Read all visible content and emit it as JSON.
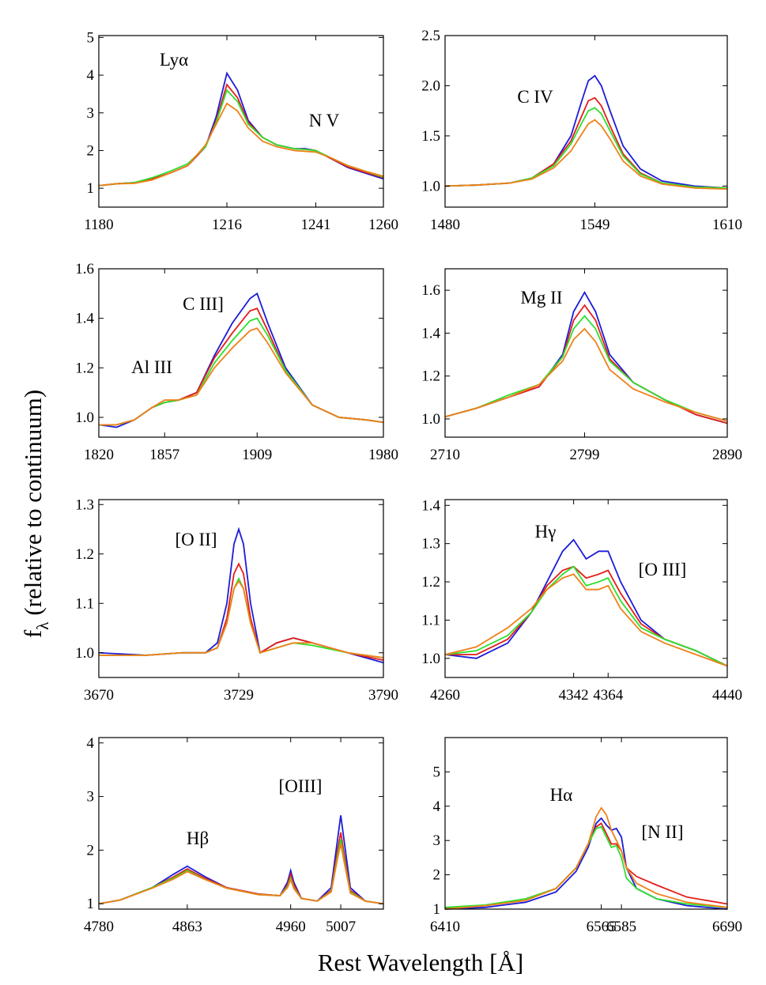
{
  "figure": {
    "ylabel_main": "f",
    "ylabel_sub": "λ",
    "ylabel_rest": "(relative to continuum)",
    "xlabel": "Rest Wavelength [Å]"
  },
  "chart_data": [
    {
      "type": "line",
      "annotations": [
        "Lyα",
        "N V"
      ],
      "xlim": [
        1180,
        1260
      ],
      "xticks": [
        1180,
        1216,
        1241,
        1260
      ],
      "ylim": [
        0.5,
        5.05
      ],
      "yticks": [
        1,
        2,
        3,
        4,
        5
      ],
      "x": [
        1180,
        1185,
        1190,
        1195,
        1200,
        1205,
        1210,
        1213,
        1216,
        1219,
        1222,
        1226,
        1230,
        1235,
        1238,
        1241,
        1245,
        1250,
        1255,
        1260
      ],
      "series": [
        {
          "color": "#1c1cd8",
          "values": [
            1.07,
            1.12,
            1.15,
            1.25,
            1.4,
            1.6,
            2.1,
            2.9,
            4.05,
            3.6,
            2.8,
            2.35,
            2.15,
            2.05,
            2.05,
            2.0,
            1.8,
            1.55,
            1.4,
            1.25
          ]
        },
        {
          "color": "#e41e1a",
          "values": [
            1.07,
            1.12,
            1.15,
            1.25,
            1.4,
            1.6,
            2.1,
            2.8,
            3.75,
            3.4,
            2.75,
            2.35,
            2.15,
            2.05,
            2.03,
            2.0,
            1.8,
            1.57,
            1.42,
            1.28
          ]
        },
        {
          "color": "#2ee02e",
          "values": [
            1.07,
            1.12,
            1.15,
            1.28,
            1.45,
            1.65,
            2.1,
            2.75,
            3.6,
            3.3,
            2.7,
            2.35,
            2.15,
            2.05,
            2.03,
            2.0,
            1.82,
            1.6,
            1.45,
            1.3
          ]
        },
        {
          "color": "#f08018",
          "values": [
            1.07,
            1.12,
            1.13,
            1.22,
            1.4,
            1.6,
            2.15,
            2.7,
            3.25,
            3.05,
            2.6,
            2.25,
            2.1,
            2.0,
            1.98,
            1.96,
            1.82,
            1.6,
            1.45,
            1.32
          ]
        }
      ]
    },
    {
      "type": "line",
      "annotations": [
        "C IV"
      ],
      "xlim": [
        1480,
        1610
      ],
      "xticks": [
        1480,
        1549,
        1610
      ],
      "ylim": [
        0.79,
        2.5
      ],
      "yticks": [
        {
          "value": 1,
          "label": "1.0"
        },
        1.5,
        {
          "value": 2,
          "label": "2.0"
        },
        2.5
      ],
      "x": [
        1480,
        1495,
        1510,
        1520,
        1530,
        1538,
        1543,
        1546,
        1549,
        1552,
        1556,
        1562,
        1570,
        1580,
        1595,
        1610
      ],
      "series": [
        {
          "color": "#1c1cd8",
          "values": [
            1.0,
            1.01,
            1.03,
            1.08,
            1.22,
            1.5,
            1.85,
            2.05,
            2.1,
            2.0,
            1.75,
            1.4,
            1.17,
            1.05,
            1.0,
            0.98
          ]
        },
        {
          "color": "#e41e1a",
          "values": [
            1.0,
            1.01,
            1.03,
            1.08,
            1.22,
            1.45,
            1.7,
            1.85,
            1.88,
            1.8,
            1.6,
            1.32,
            1.13,
            1.03,
            0.99,
            0.98
          ]
        },
        {
          "color": "#2ee02e",
          "values": [
            1.0,
            1.01,
            1.03,
            1.08,
            1.2,
            1.42,
            1.63,
            1.75,
            1.78,
            1.72,
            1.55,
            1.3,
            1.12,
            1.03,
            0.99,
            0.98
          ]
        },
        {
          "color": "#f08018",
          "values": [
            1.0,
            1.01,
            1.03,
            1.07,
            1.18,
            1.35,
            1.52,
            1.62,
            1.66,
            1.6,
            1.47,
            1.25,
            1.1,
            1.02,
            0.98,
            0.97
          ]
        }
      ]
    },
    {
      "type": "line",
      "annotations": [
        "C III]",
        "Al III"
      ],
      "xlim": [
        1820,
        1980
      ],
      "xticks": [
        1820,
        1857,
        1909,
        1980
      ],
      "ylim": [
        0.92,
        1.6
      ],
      "yticks": [
        {
          "value": 1,
          "label": "1.0"
        },
        1.2,
        1.4,
        1.6
      ],
      "x": [
        1820,
        1830,
        1840,
        1850,
        1857,
        1865,
        1875,
        1885,
        1895,
        1905,
        1909,
        1915,
        1925,
        1940,
        1955,
        1970,
        1980
      ],
      "series": [
        {
          "color": "#1c1cd8",
          "values": [
            0.97,
            0.96,
            0.99,
            1.04,
            1.06,
            1.07,
            1.1,
            1.25,
            1.38,
            1.48,
            1.5,
            1.38,
            1.2,
            1.05,
            1.0,
            0.99,
            0.98
          ]
        },
        {
          "color": "#e41e1a",
          "values": [
            0.97,
            0.97,
            0.99,
            1.04,
            1.06,
            1.07,
            1.1,
            1.24,
            1.34,
            1.43,
            1.44,
            1.35,
            1.19,
            1.05,
            1.0,
            0.99,
            0.98
          ]
        },
        {
          "color": "#2ee02e",
          "values": [
            0.97,
            0.97,
            0.99,
            1.04,
            1.06,
            1.07,
            1.09,
            1.22,
            1.31,
            1.39,
            1.4,
            1.33,
            1.19,
            1.05,
            1.0,
            0.99,
            0.98
          ]
        },
        {
          "color": "#f08018",
          "values": [
            0.97,
            0.97,
            0.99,
            1.04,
            1.07,
            1.07,
            1.09,
            1.2,
            1.28,
            1.35,
            1.36,
            1.3,
            1.18,
            1.05,
            1.0,
            0.99,
            0.98
          ]
        }
      ]
    },
    {
      "type": "line",
      "annotations": [
        "Mg II"
      ],
      "xlim": [
        2710,
        2890
      ],
      "xticks": [
        2710,
        2799,
        2890
      ],
      "ylim": [
        0.915,
        1.7
      ],
      "yticks": [
        {
          "value": 1,
          "label": "1.0"
        },
        1.2,
        1.4,
        1.6
      ],
      "x": [
        2710,
        2730,
        2750,
        2770,
        2785,
        2792,
        2799,
        2806,
        2815,
        2830,
        2850,
        2870,
        2890
      ],
      "series": [
        {
          "color": "#1c1cd8",
          "values": [
            1.01,
            1.05,
            1.1,
            1.15,
            1.3,
            1.5,
            1.59,
            1.5,
            1.3,
            1.17,
            1.09,
            1.02,
            0.98
          ]
        },
        {
          "color": "#e41e1a",
          "values": [
            1.01,
            1.05,
            1.1,
            1.15,
            1.29,
            1.46,
            1.53,
            1.46,
            1.28,
            1.17,
            1.09,
            1.02,
            0.98
          ]
        },
        {
          "color": "#2ee02e",
          "values": [
            1.01,
            1.05,
            1.11,
            1.16,
            1.29,
            1.42,
            1.48,
            1.42,
            1.27,
            1.17,
            1.09,
            1.03,
            0.99
          ]
        },
        {
          "color": "#f08018",
          "values": [
            1.01,
            1.05,
            1.1,
            1.16,
            1.27,
            1.37,
            1.42,
            1.36,
            1.23,
            1.14,
            1.08,
            1.03,
            0.99
          ]
        }
      ]
    },
    {
      "type": "line",
      "annotations": [
        "[O II]"
      ],
      "xlim": [
        3670,
        3790
      ],
      "xticks": [
        3670,
        3729,
        3790
      ],
      "ylim": [
        0.95,
        1.31
      ],
      "yticks": [
        {
          "value": 1,
          "label": "1.0"
        },
        1.1,
        1.2,
        1.3
      ],
      "x": [
        3670,
        3690,
        3705,
        3715,
        3720,
        3724,
        3727,
        3729,
        3731,
        3734,
        3738,
        3745,
        3752,
        3760,
        3775,
        3790
      ],
      "series": [
        {
          "color": "#1c1cd8",
          "values": [
            1.0,
            0.995,
            1.0,
            1.0,
            1.02,
            1.1,
            1.22,
            1.25,
            1.22,
            1.1,
            1.0,
            1.02,
            1.03,
            1.02,
            1.0,
            0.98
          ]
        },
        {
          "color": "#e41e1a",
          "values": [
            0.995,
            0.995,
            1.0,
            1.0,
            1.01,
            1.07,
            1.16,
            1.18,
            1.16,
            1.07,
            1.0,
            1.02,
            1.03,
            1.02,
            1.0,
            0.985
          ]
        },
        {
          "color": "#2ee02e",
          "values": [
            0.995,
            0.995,
            1.0,
            1.0,
            1.01,
            1.06,
            1.13,
            1.15,
            1.13,
            1.06,
            1.0,
            1.01,
            1.02,
            1.015,
            1.0,
            0.99
          ]
        },
        {
          "color": "#f08018",
          "values": [
            0.995,
            0.995,
            1.0,
            1.0,
            1.01,
            1.06,
            1.13,
            1.145,
            1.13,
            1.06,
            1.0,
            1.01,
            1.02,
            1.02,
            1.0,
            0.99
          ]
        }
      ]
    },
    {
      "type": "line",
      "annotations": [
        "Hγ",
        "[O III]"
      ],
      "xlim": [
        4260,
        4440
      ],
      "xticks": [
        4260,
        4342,
        4364,
        4440
      ],
      "ylim": [
        0.95,
        1.415
      ],
      "yticks": [
        {
          "value": 1,
          "label": "1.0"
        },
        1.1,
        1.2,
        1.3,
        1.4
      ],
      "x": [
        4260,
        4280,
        4300,
        4315,
        4325,
        4335,
        4342,
        4350,
        4358,
        4364,
        4372,
        4385,
        4400,
        4420,
        4440
      ],
      "series": [
        {
          "color": "#1c1cd8",
          "values": [
            1.01,
            1.0,
            1.04,
            1.12,
            1.2,
            1.28,
            1.31,
            1.26,
            1.28,
            1.28,
            1.2,
            1.1,
            1.05,
            1.02,
            0.98
          ]
        },
        {
          "color": "#e41e1a",
          "values": [
            1.01,
            1.01,
            1.05,
            1.12,
            1.19,
            1.23,
            1.24,
            1.21,
            1.22,
            1.23,
            1.17,
            1.09,
            1.05,
            1.02,
            0.98
          ]
        },
        {
          "color": "#2ee02e",
          "values": [
            1.01,
            1.02,
            1.06,
            1.12,
            1.18,
            1.22,
            1.24,
            1.19,
            1.2,
            1.21,
            1.15,
            1.08,
            1.05,
            1.02,
            0.98
          ]
        },
        {
          "color": "#f08018",
          "values": [
            1.01,
            1.03,
            1.08,
            1.13,
            1.18,
            1.21,
            1.22,
            1.18,
            1.18,
            1.19,
            1.13,
            1.07,
            1.04,
            1.01,
            0.98
          ]
        }
      ]
    },
    {
      "type": "line",
      "annotations": [
        "Hβ",
        "[OIII]"
      ],
      "xlim": [
        4780,
        5047
      ],
      "xticks": [
        4780,
        4863,
        4960,
        5007
      ],
      "ylim": [
        0.9,
        4.1
      ],
      "yticks": [
        1,
        2,
        3,
        4
      ],
      "x": [
        4780,
        4800,
        4830,
        4850,
        4863,
        4880,
        4900,
        4930,
        4950,
        4957,
        4960,
        4963,
        4970,
        4985,
        4998,
        5004,
        5007,
        5010,
        5016,
        5030,
        5047
      ],
      "series": [
        {
          "color": "#1c1cd8",
          "values": [
            1.0,
            1.07,
            1.3,
            1.55,
            1.7,
            1.5,
            1.3,
            1.18,
            1.15,
            1.4,
            1.62,
            1.4,
            1.1,
            1.05,
            1.3,
            2.2,
            2.65,
            2.2,
            1.3,
            1.05,
            1.0
          ]
        },
        {
          "color": "#e41e1a",
          "values": [
            1.0,
            1.07,
            1.3,
            1.5,
            1.65,
            1.47,
            1.3,
            1.18,
            1.15,
            1.35,
            1.55,
            1.35,
            1.1,
            1.05,
            1.25,
            2.0,
            2.33,
            1.95,
            1.25,
            1.05,
            1.0
          ]
        },
        {
          "color": "#2ee02e",
          "values": [
            1.0,
            1.07,
            1.3,
            1.48,
            1.62,
            1.45,
            1.29,
            1.17,
            1.15,
            1.32,
            1.48,
            1.3,
            1.1,
            1.05,
            1.23,
            1.9,
            2.2,
            1.85,
            1.22,
            1.05,
            1.0
          ]
        },
        {
          "color": "#f08018",
          "values": [
            1.0,
            1.07,
            1.29,
            1.46,
            1.6,
            1.45,
            1.29,
            1.17,
            1.15,
            1.3,
            1.45,
            1.28,
            1.1,
            1.05,
            1.22,
            1.85,
            2.12,
            1.8,
            1.2,
            1.05,
            1.0
          ]
        }
      ]
    },
    {
      "type": "line",
      "annotations": [
        "Hα",
        "[N II]"
      ],
      "xlim": [
        6410,
        6690
      ],
      "xticks": [
        6410,
        6565,
        6585,
        6690
      ],
      "ylim": [
        1,
        6
      ],
      "yticks": [
        1,
        2,
        3,
        4,
        5
      ],
      "x": [
        6410,
        6450,
        6490,
        6520,
        6540,
        6552,
        6560,
        6565,
        6570,
        6575,
        6580,
        6585,
        6590,
        6600,
        6620,
        6650,
        6690
      ],
      "series": [
        {
          "color": "#1c1cd8",
          "values": [
            1.0,
            1.05,
            1.2,
            1.5,
            2.1,
            2.8,
            3.5,
            3.65,
            3.45,
            3.3,
            3.35,
            3.1,
            2.2,
            1.6,
            1.3,
            1.1,
            1.0
          ]
        },
        {
          "color": "#e41e1a",
          "values": [
            1.02,
            1.1,
            1.3,
            1.6,
            2.2,
            2.9,
            3.4,
            3.5,
            3.2,
            2.9,
            2.9,
            2.7,
            2.2,
            1.95,
            1.7,
            1.35,
            1.15
          ]
        },
        {
          "color": "#2ee02e",
          "values": [
            1.05,
            1.12,
            1.3,
            1.6,
            2.2,
            2.9,
            3.35,
            3.4,
            3.1,
            2.8,
            2.85,
            2.5,
            1.9,
            1.6,
            1.3,
            1.15,
            1.05
          ]
        },
        {
          "color": "#f08018",
          "values": [
            1.0,
            1.1,
            1.25,
            1.6,
            2.2,
            2.9,
            3.7,
            3.95,
            3.75,
            3.3,
            3.0,
            2.7,
            2.2,
            1.75,
            1.45,
            1.2,
            1.05
          ]
        }
      ]
    }
  ]
}
